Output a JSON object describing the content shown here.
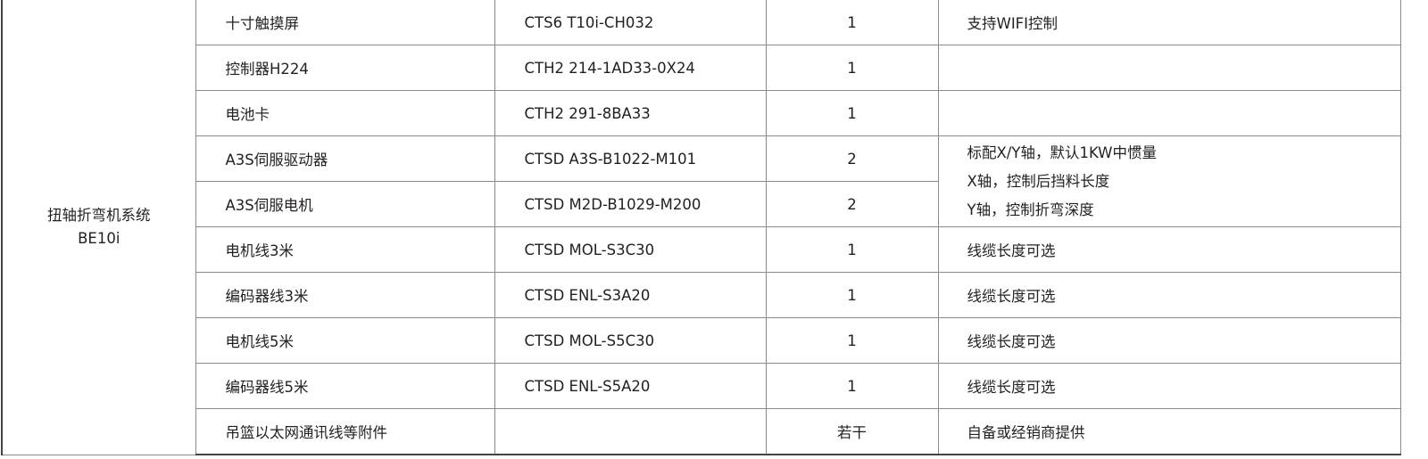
{
  "system": {
    "name_line1": "扭轴折弯机系统",
    "name_line2": "BE10i"
  },
  "rows": [
    {
      "name": "十寸触摸屏",
      "model": "CTS6 T10i-CH032",
      "qty": "1",
      "remark": "支持WIFI控制"
    },
    {
      "name": "控制器H224",
      "model": "CTH2 214-1AD33-0X24",
      "qty": "1",
      "remark": ""
    },
    {
      "name": "电池卡",
      "model": "CTH2 291-8BA33",
      "qty": "1",
      "remark": ""
    },
    {
      "name": "A3S伺服驱动器",
      "model": "CTSD A3S-B1022-M101",
      "qty": "2"
    },
    {
      "name": "A3S伺服电机",
      "model": "CTSD M2D-B1029-M200",
      "qty": "2"
    },
    {
      "name": "电机线3米",
      "model": "CTSD MOL-S3C30",
      "qty": "1",
      "remark": "线缆长度可选"
    },
    {
      "name": "编码器线3米",
      "model": "CTSD ENL-S3A20",
      "qty": "1",
      "remark": "线缆长度可选"
    },
    {
      "name": "电机线5米",
      "model": "CTSD MOL-S5C30",
      "qty": "1",
      "remark": "线缆长度可选"
    },
    {
      "name": "编码器线5米",
      "model": "CTSD ENL-S5A20",
      "qty": "1",
      "remark": "线缆长度可选"
    },
    {
      "name": "吊篮以太网通讯线等附件",
      "model": "",
      "qty": "若干",
      "remark": "自备或经销商提供"
    }
  ],
  "servo_remark": [
    "标配X/Y轴，默认1KW中惯量",
    "X轴，控制后挡料长度",
    "Y轴，控制折弯深度"
  ]
}
